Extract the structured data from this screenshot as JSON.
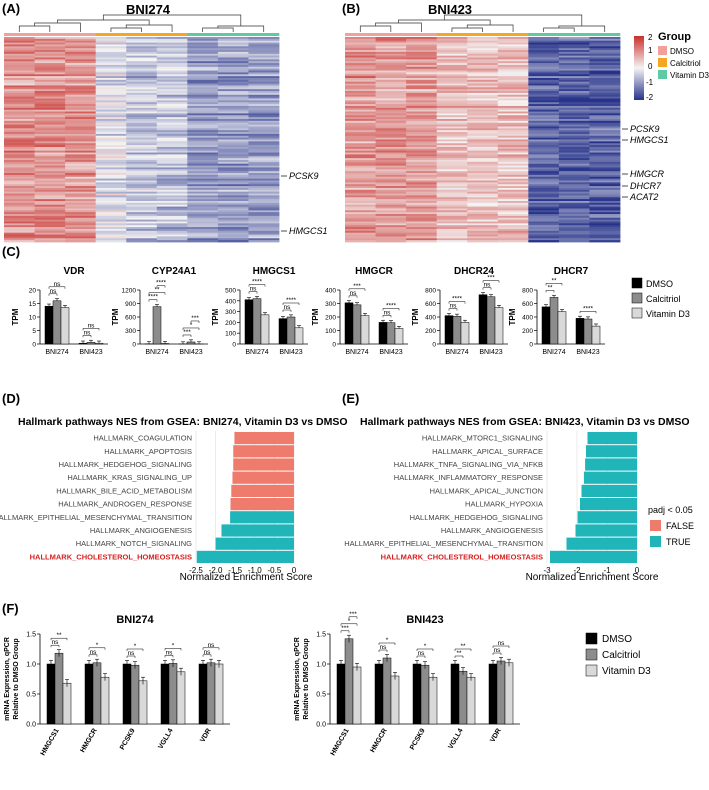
{
  "figure": {
    "colors": {
      "dmso": "#000000",
      "calcitriol": "#8c8c8c",
      "vitd3": "#d9d9d9",
      "false": "#ef7b6c",
      "true": "#1fb5b9",
      "chol": "#d62020",
      "dmso_group": "#f4a09a",
      "calcitriol_group": "#f5a623",
      "vitd3_group": "#5fc9a3",
      "hm_low": "#27338a",
      "hm_mid": "#f4f4f4",
      "hm_high": "#c9302c"
    }
  },
  "panelA": {
    "label": "(A)",
    "title": "BNI274",
    "group_bar": [
      {
        "group": "DMSO",
        "color": "#f4a09a"
      },
      {
        "group": "Calcitriol",
        "color": "#f5a623"
      },
      {
        "group": "Vitamin D3",
        "color": "#5fc9a3"
      }
    ],
    "genes": [
      "PCSK9",
      "HMGCS1"
    ]
  },
  "panelB": {
    "label": "(B)",
    "title": "BNI423",
    "genes": [
      "PCSK9",
      "HMGCS1",
      "HMGCR",
      "DHCR7",
      "ACAT2"
    ]
  },
  "legendA": {
    "scale": [
      "2",
      "1",
      "0",
      "-1",
      "-2"
    ],
    "title": "Group",
    "items": [
      {
        "label": "DMSO",
        "color": "#f4a09a"
      },
      {
        "label": "Calcitriol",
        "color": "#f5a623"
      },
      {
        "label": "Vitamin D3",
        "color": "#5fc9a3"
      }
    ]
  },
  "chart_data": [
    {
      "id": "C",
      "type": "bar",
      "label": "(C)",
      "ylabel": "TPM",
      "categories": [
        "BNI274",
        "BNI423"
      ],
      "legend": [
        "DMSO",
        "Calcitriol",
        "Vitamin D3"
      ],
      "subplots": [
        {
          "title": "VDR",
          "ymax": 20,
          "ticks": [
            "0",
            "5",
            "10",
            "15",
            "20"
          ],
          "values": [
            [
              14,
              16,
              13.5
            ],
            [
              0.3,
              0.6,
              0.3
            ]
          ],
          "sig": [
            {
              "g": 0,
              "a": 0,
              "b": 1,
              "text": "ns"
            },
            {
              "g": 0,
              "a": 0,
              "b": 2,
              "text": "ns"
            },
            {
              "g": 1,
              "a": 0,
              "b": 1,
              "text": "ns"
            },
            {
              "g": 1,
              "a": 0,
              "b": 2,
              "text": "ns"
            }
          ]
        },
        {
          "title": "CYP24A1",
          "ymax": 1200,
          "ticks": [
            "0",
            "300",
            "600",
            "900",
            "1200"
          ],
          "values": [
            [
              5,
              830,
              10
            ],
            [
              1,
              45,
              2
            ]
          ],
          "sig": [
            {
              "g": 0,
              "a": 0,
              "b": 1,
              "text": "****"
            },
            {
              "g": 0,
              "a": 0,
              "b": 2,
              "text": "**"
            },
            {
              "g": 0,
              "a": 1,
              "b": 2,
              "text": "****"
            },
            {
              "g": 1,
              "a": 0,
              "b": 1,
              "text": "***"
            },
            {
              "g": 1,
              "a": 0,
              "b": 2,
              "text": "*"
            },
            {
              "g": 1,
              "a": 1,
              "b": 2,
              "text": "***"
            }
          ]
        },
        {
          "title": "HMGCS1",
          "ymax": 500,
          "ticks": [
            "0",
            "100",
            "200",
            "300",
            "400",
            "500"
          ],
          "values": [
            [
              410,
              420,
              270
            ],
            [
              235,
              250,
              150
            ]
          ],
          "sig": [
            {
              "g": 0,
              "a": 0,
              "b": 1,
              "text": "ns"
            },
            {
              "g": 0,
              "a": 0,
              "b": 2,
              "text": "****"
            },
            {
              "g": 1,
              "a": 0,
              "b": 1,
              "text": "ns"
            },
            {
              "g": 1,
              "a": 0,
              "b": 2,
              "text": "****"
            }
          ]
        },
        {
          "title": "HMGCR",
          "ymax": 400,
          "ticks": [
            "0",
            "100",
            "200",
            "300",
            "400"
          ],
          "values": [
            [
              305,
              290,
              210
            ],
            [
              160,
              158,
              115
            ]
          ],
          "sig": [
            {
              "g": 0,
              "a": 0,
              "b": 1,
              "text": "ns"
            },
            {
              "g": 0,
              "a": 0,
              "b": 2,
              "text": "***"
            },
            {
              "g": 1,
              "a": 0,
              "b": 1,
              "text": "ns"
            },
            {
              "g": 1,
              "a": 0,
              "b": 2,
              "text": "****"
            }
          ]
        },
        {
          "title": "DHCR24",
          "ymax": 800,
          "ticks": [
            "0",
            "200",
            "400",
            "600",
            "800"
          ],
          "values": [
            [
              420,
              410,
              320
            ],
            [
              730,
              700,
              540
            ]
          ],
          "sig": [
            {
              "g": 0,
              "a": 0,
              "b": 1,
              "text": "ns"
            },
            {
              "g": 0,
              "a": 0,
              "b": 2,
              "text": "****"
            },
            {
              "g": 1,
              "a": 0,
              "b": 1,
              "text": "ns"
            },
            {
              "g": 1,
              "a": 0,
              "b": 2,
              "text": "***"
            }
          ]
        },
        {
          "title": "DHCR7",
          "ymax": 800,
          "ticks": [
            "0",
            "200",
            "400",
            "600",
            "800"
          ],
          "values": [
            [
              550,
              690,
              480
            ],
            [
              380,
              370,
              265
            ]
          ],
          "sig": [
            {
              "g": 0,
              "a": 0,
              "b": 1,
              "text": "**"
            },
            {
              "g": 0,
              "a": 0,
              "b": 2,
              "text": "**"
            },
            {
              "g": 1,
              "a": 0,
              "b": 2,
              "text": "****"
            }
          ]
        }
      ]
    },
    {
      "id": "D",
      "type": "bar",
      "label": "(D)",
      "orientation": "horizontal",
      "title": "Hallmark pathways NES from GSEA: BNI274, Vitamin D3 vs DMSO",
      "xlabel": "Normalized Enrichment Score",
      "xlim": [
        -2.5,
        0
      ],
      "ticks": [
        "-2.5",
        "-2.0",
        "-1.5",
        "-1.0",
        "-0.5",
        "0"
      ],
      "categories": [
        "HALLMARK_COAGULATION",
        "HALLMARK_APOPTOSIS",
        "HALLMARK_HEDGEHOG_SIGNALING",
        "HALLMARK_KRAS_SIGNALING_UP",
        "HALLMARK_BILE_ACID_METABOLISM",
        "HALLMARK_ANDROGEN_RESPONSE",
        "HALLMARK_EPITHELIAL_MESENCHYMAL_TRANSITION",
        "HALLMARK_ANGIOGENESIS",
        "HALLMARK_NOTCH_SIGNALING",
        "HALLMARK_CHOLESTEROL_HOMEOSTASIS"
      ],
      "values": [
        -1.52,
        -1.55,
        -1.55,
        -1.57,
        -1.6,
        -1.62,
        -1.63,
        -1.85,
        -2.0,
        -2.48
      ],
      "padj_significant": [
        false,
        false,
        false,
        false,
        false,
        false,
        true,
        true,
        true,
        true
      ]
    },
    {
      "id": "E",
      "type": "bar",
      "label": "(E)",
      "orientation": "horizontal",
      "title": "Hallmark pathways NES from GSEA: BNI423, Vitamin D3 vs DMSO",
      "xlabel": "Normalized Enrichment Score",
      "xlim": [
        -3,
        0
      ],
      "ticks": [
        "-3",
        "-2",
        "-1",
        "0"
      ],
      "categories": [
        "HALLMARK_MTORC1_SIGNALING",
        "HALLMARK_APICAL_SURFACE",
        "HALLMARK_TNFA_SIGNALING_VIA_NFKB",
        "HALLMARK_INFLAMMATORY_RESPONSE",
        "HALLMARK_APICAL_JUNCTION",
        "HALLMARK_HYPOXIA",
        "HALLMARK_HEDGEHOG_SIGNALING",
        "HALLMARK_ANGIOGENESIS",
        "HALLMARK_EPITHELIAL_MESENCHYMAL_TRANSITION",
        "HALLMARK_CHOLESTEROL_HOMEOSTASIS"
      ],
      "values": [
        -1.65,
        -1.7,
        -1.73,
        -1.77,
        -1.85,
        -1.9,
        -1.98,
        -2.05,
        -2.35,
        -2.9
      ],
      "padj_significant": [
        true,
        true,
        true,
        true,
        true,
        true,
        true,
        true,
        true,
        true
      ],
      "legend_title": "padj < 0.05",
      "legend": [
        "FALSE",
        "TRUE"
      ]
    },
    {
      "id": "F",
      "type": "bar",
      "label": "(F)",
      "ylabel": [
        "mRNA Expression, qPCR",
        "Relative to DMSO Group"
      ],
      "ylim": [
        0,
        1.5
      ],
      "ticks": [
        "0.0",
        "0.5",
        "1.0",
        "1.5"
      ],
      "legend": [
        "DMSO",
        "Calcitriol",
        "Vitamin D3"
      ],
      "categories": [
        "HMGCS1",
        "HMGCR",
        "PCSK9",
        "VGLL4",
        "VDR"
      ],
      "subplots": [
        {
          "title": "BNI274",
          "values": [
            [
              1.0,
              1.18,
              0.68
            ],
            [
              1.0,
              1.02,
              0.78
            ],
            [
              1.0,
              0.98,
              0.72
            ],
            [
              1.0,
              1.01,
              0.87
            ],
            [
              1.0,
              1.02,
              1.0
            ]
          ],
          "sig": [
            {
              "g": 0,
              "a": 0,
              "b": 1,
              "text": "ns"
            },
            {
              "g": 0,
              "a": 0,
              "b": 2,
              "text": "**"
            },
            {
              "g": 1,
              "a": 0,
              "b": 1,
              "text": "ns"
            },
            {
              "g": 1,
              "a": 0,
              "b": 2,
              "text": "*"
            },
            {
              "g": 2,
              "a": 0,
              "b": 1,
              "text": "ns"
            },
            {
              "g": 2,
              "a": 0,
              "b": 2,
              "text": "*"
            },
            {
              "g": 3,
              "a": 0,
              "b": 1,
              "text": "ns"
            },
            {
              "g": 3,
              "a": 0,
              "b": 2,
              "text": "*"
            },
            {
              "g": 4,
              "a": 0,
              "b": 1,
              "text": "ns"
            },
            {
              "g": 4,
              "a": 0,
              "b": 2,
              "text": "ns"
            }
          ]
        },
        {
          "title": "BNI423",
          "values": [
            [
              1.0,
              1.42,
              0.95
            ],
            [
              1.0,
              1.1,
              0.8
            ],
            [
              1.0,
              0.98,
              0.78
            ],
            [
              1.0,
              0.88,
              0.78
            ],
            [
              1.0,
              1.05,
              1.02
            ]
          ],
          "sig": [
            {
              "g": 0,
              "a": 0,
              "b": 1,
              "text": "***"
            },
            {
              "g": 0,
              "a": 0,
              "b": 2,
              "text": "*"
            },
            {
              "g": 0,
              "a": 1,
              "b": 2,
              "text": "***"
            },
            {
              "g": 1,
              "a": 0,
              "b": 1,
              "text": "ns"
            },
            {
              "g": 1,
              "a": 0,
              "b": 2,
              "text": "*"
            },
            {
              "g": 2,
              "a": 0,
              "b": 1,
              "text": "ns"
            },
            {
              "g": 2,
              "a": 0,
              "b": 2,
              "text": "*"
            },
            {
              "g": 3,
              "a": 0,
              "b": 1,
              "text": "**"
            },
            {
              "g": 3,
              "a": 0,
              "b": 2,
              "text": "**"
            },
            {
              "g": 4,
              "a": 0,
              "b": 1,
              "text": "ns"
            },
            {
              "g": 4,
              "a": 0,
              "b": 2,
              "text": "ns"
            }
          ]
        }
      ]
    }
  ]
}
